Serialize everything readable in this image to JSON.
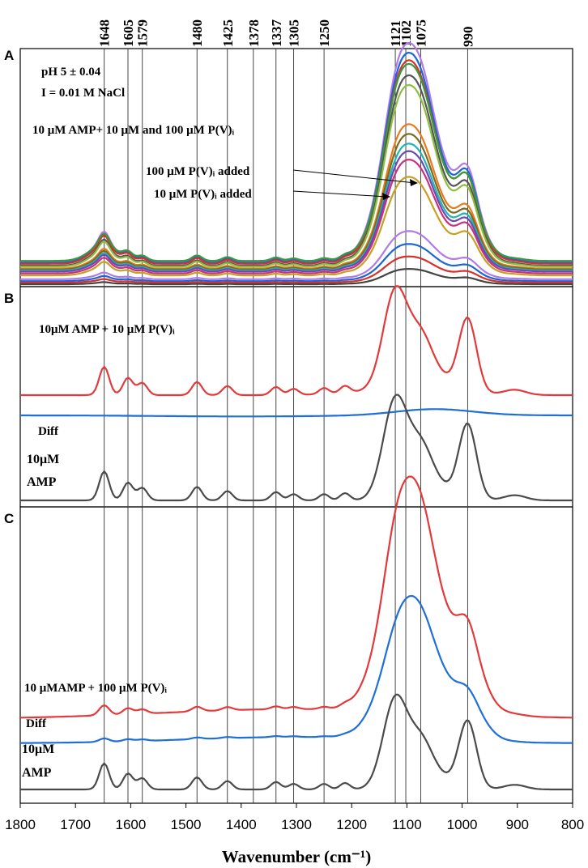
{
  "chart_data": {
    "type": "line",
    "xlabel": "Wavenumber (cm⁻¹)",
    "xlim": [
      1800,
      800
    ],
    "x_ticks": [
      "1800",
      "1700",
      "1600",
      "1500",
      "1400",
      "1300",
      "1200",
      "1100",
      "1000",
      "900",
      "800"
    ],
    "x_tick_values": [
      1800,
      1700,
      1600,
      1500,
      1400,
      1300,
      1200,
      1100,
      1000,
      900,
      800
    ],
    "reference_lines": [
      {
        "label": "1648",
        "x": 1648
      },
      {
        "label": "1605",
        "x": 1605
      },
      {
        "label": "1579",
        "x": 1579
      },
      {
        "label": "1480",
        "x": 1480
      },
      {
        "label": "1425",
        "x": 1425
      },
      {
        "label": "1378",
        "x": 1378
      },
      {
        "label": "1337",
        "x": 1337
      },
      {
        "label": "1305",
        "x": 1305
      },
      {
        "label": "1250",
        "x": 1250
      },
      {
        "label": "1121",
        "x": 1121
      },
      {
        "label": "1102",
        "x": 1102
      },
      {
        "label": "1075",
        "x": 1075
      },
      {
        "label": "990",
        "x": 990
      }
    ],
    "panels": [
      {
        "letter": "A",
        "annotations": [
          "pH 5 ± 0.04",
          "I = 0.01 M NaCl",
          "10 μM AMP+ 10 μM and 100 μM P(V)ᵢ",
          "100 μM P(V)ᵢ added",
          "10 μM P(V)ᵢ added"
        ],
        "series": [
          {
            "name": "series-1",
            "color": "#b07aeb",
            "scale": 1.0,
            "offset": 0.12
          },
          {
            "name": "series-2",
            "color": "#1a66d6",
            "scale": 0.96,
            "offset": 0.115
          },
          {
            "name": "series-3",
            "color": "#d9302b",
            "scale": 0.93,
            "offset": 0.11
          },
          {
            "name": "series-4",
            "color": "#3a9a3a",
            "scale": 0.9,
            "offset": 0.125
          },
          {
            "name": "series-5",
            "color": "#555555",
            "scale": 0.87,
            "offset": 0.1
          },
          {
            "name": "series-6",
            "color": "#8fbf40",
            "scale": 0.83,
            "offset": 0.095
          },
          {
            "name": "series-7",
            "color": "#e87a1e",
            "scale": 0.66,
            "offset": 0.085
          },
          {
            "name": "series-8",
            "color": "#7a6a20",
            "scale": 0.62,
            "offset": 0.08
          },
          {
            "name": "series-9",
            "color": "#20b5b5",
            "scale": 0.58,
            "offset": 0.075
          },
          {
            "name": "series-10",
            "color": "#6a4ab0",
            "scale": 0.55,
            "offset": 0.07
          },
          {
            "name": "series-11",
            "color": "#c83080",
            "scale": 0.52,
            "offset": 0.06
          },
          {
            "name": "series-12",
            "color": "#c8a020",
            "scale": 0.45,
            "offset": 0.05
          },
          {
            "name": "series-13",
            "color": "#b07aeb",
            "scale": 0.22,
            "offset": 0.03
          },
          {
            "name": "series-14",
            "color": "#1a66d6",
            "scale": 0.17,
            "offset": 0.02
          },
          {
            "name": "series-15",
            "color": "#d9302b",
            "scale": 0.12,
            "offset": 0.012
          },
          {
            "name": "series-16",
            "color": "#444444",
            "scale": 0.07,
            "offset": 0.004
          }
        ]
      },
      {
        "letter": "B",
        "annotations": [
          "10μM AMP + 10 μM P(V)ᵢ",
          "Diff",
          "10μM",
          "AMP"
        ],
        "series": [
          {
            "name": "10μM AMP + 10 μM P(V)i",
            "color": "#e23a3a"
          },
          {
            "name": "Diff",
            "color": "#1f6fd6"
          },
          {
            "name": "10μM AMP",
            "color": "#4a4a4a"
          }
        ]
      },
      {
        "letter": "C",
        "annotations": [
          "10 μMAMP + 100 μM P(V)ᵢ",
          "Diff",
          "10μM",
          "AMP"
        ],
        "series": [
          {
            "name": "10 μMAMP + 100 μM P(V)i",
            "color": "#e23a3a"
          },
          {
            "name": "Diff",
            "color": "#1f6fd6"
          },
          {
            "name": "10μM AMP",
            "color": "#4a4a4a"
          }
        ]
      }
    ],
    "amp_spectrum_peaks": [
      {
        "x": 1648,
        "h": 0.28
      },
      {
        "x": 1605,
        "h": 0.17
      },
      {
        "x": 1579,
        "h": 0.12
      },
      {
        "x": 1480,
        "h": 0.13
      },
      {
        "x": 1425,
        "h": 0.09
      },
      {
        "x": 1337,
        "h": 0.08
      },
      {
        "x": 1305,
        "h": 0.06
      },
      {
        "x": 1250,
        "h": 0.06
      },
      {
        "x": 1212,
        "h": 0.07
      },
      {
        "x": 1121,
        "h": 0.95
      },
      {
        "x": 1075,
        "h": 0.35
      },
      {
        "x": 990,
        "h": 0.72
      },
      {
        "x": 905,
        "h": 0.05
      }
    ]
  }
}
